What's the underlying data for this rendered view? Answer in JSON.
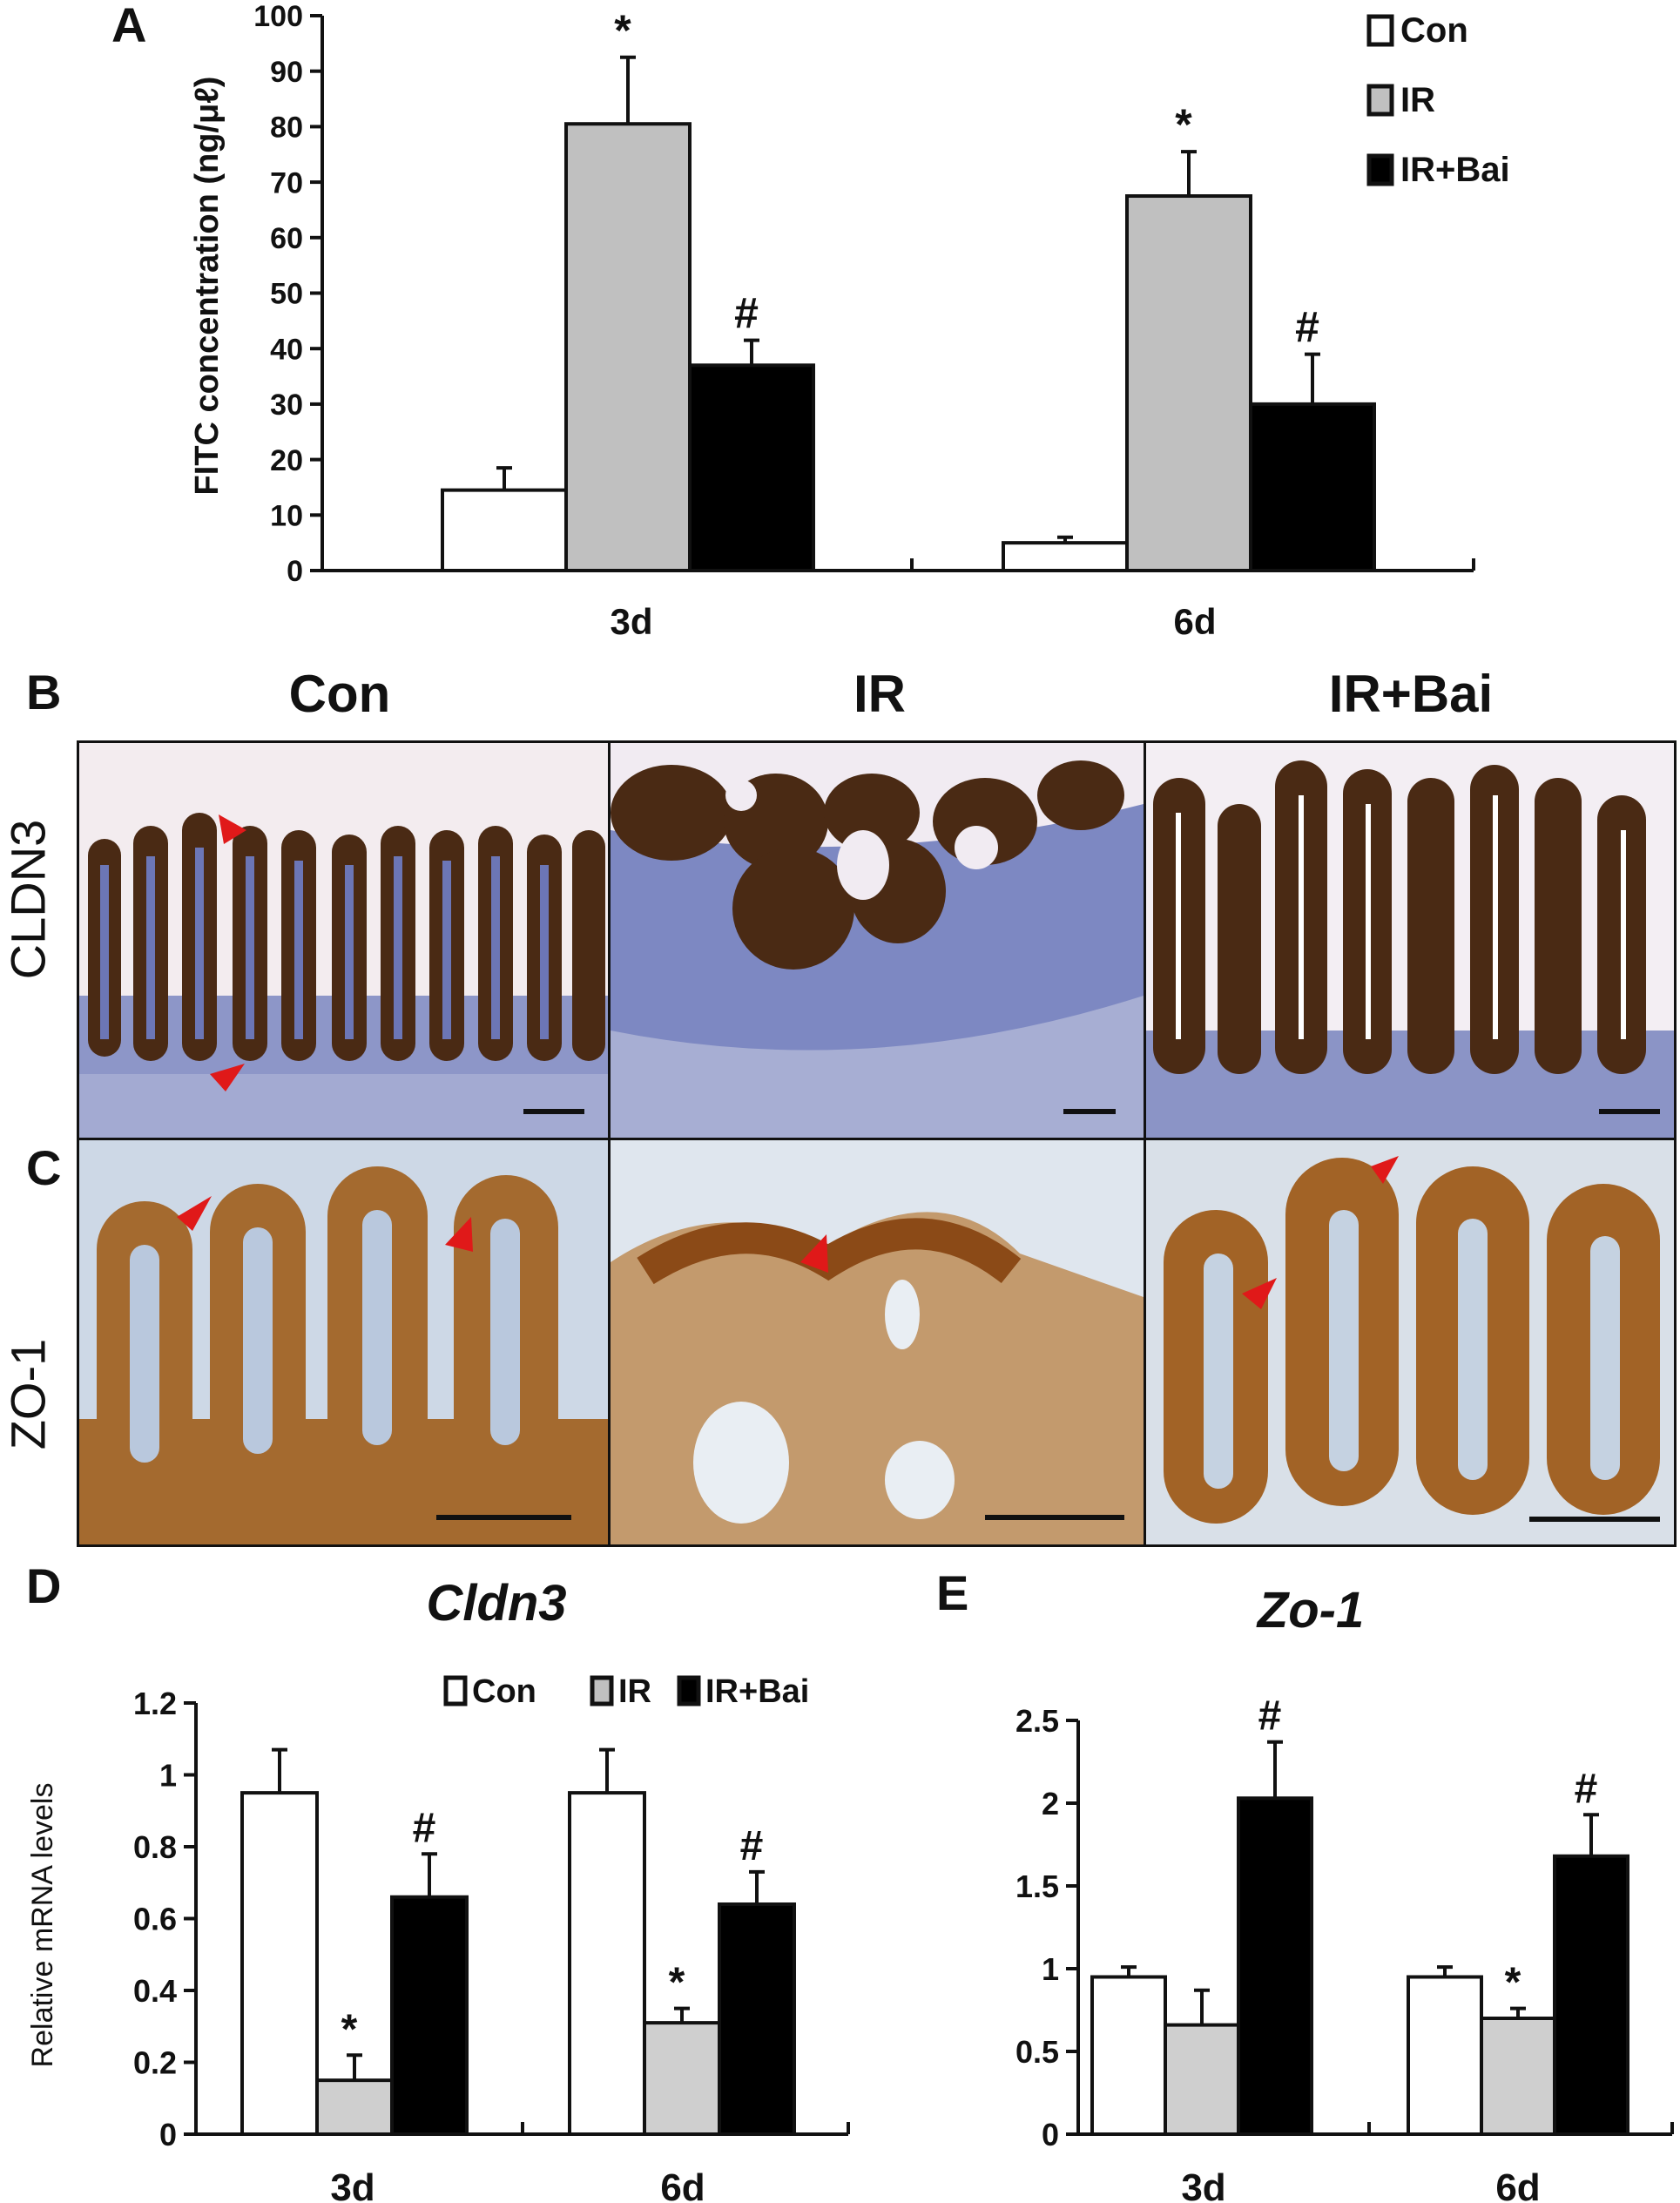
{
  "figure": {
    "panels": {
      "A": "A",
      "B": "B",
      "C": "C",
      "D": "D",
      "E": "E"
    },
    "micrograph_columns": [
      "Con",
      "IR",
      "IR+Bai"
    ],
    "micrograph_rows": [
      "CLDN3",
      "ZO-1"
    ],
    "colors": {
      "con": "#ffffff",
      "ir_a": "#c0c0c0",
      "ir_de": "#cfcfcf",
      "ir_bai": "#000000",
      "stain_blue": "#6f78b8",
      "stain_brown": "#5a3318",
      "zo1_bg": "#c9d6e6",
      "zo1_brown": "#a56a2e",
      "arrow": "#e01919"
    }
  },
  "chart_data": [
    {
      "panel": "A",
      "type": "bar",
      "title": "",
      "xlabel": "",
      "ylabel": "FITC concentration (ng/μℓ)",
      "ylim": [
        0,
        100
      ],
      "yticks": [
        0,
        10,
        20,
        30,
        40,
        50,
        60,
        70,
        80,
        90,
        100
      ],
      "categories": [
        "3d",
        "6d"
      ],
      "series": [
        {
          "name": "Con",
          "values": [
            14.5,
            5
          ],
          "errors": [
            4,
            1
          ],
          "marks": [
            "",
            ""
          ]
        },
        {
          "name": "IR",
          "values": [
            80.5,
            67.5
          ],
          "errors": [
            12,
            8
          ],
          "marks": [
            "*",
            "*"
          ]
        },
        {
          "name": "IR+Bai",
          "values": [
            37,
            30
          ],
          "errors": [
            4.5,
            9
          ],
          "marks": [
            "#",
            "#"
          ]
        }
      ],
      "legend": "top-right"
    },
    {
      "panel": "D",
      "type": "bar",
      "title": "Cldn3",
      "xlabel": "",
      "ylabel": "Relative mRNA levels",
      "ylim": [
        0,
        1.2
      ],
      "yticks": [
        "0",
        "0.2",
        "0.4",
        "0.6",
        "0.8",
        "1",
        "1.2"
      ],
      "categories": [
        "3d",
        "6d"
      ],
      "series": [
        {
          "name": "Con",
          "values": [
            0.95,
            0.95
          ],
          "errors": [
            0.12,
            0.12
          ],
          "marks": [
            "",
            ""
          ]
        },
        {
          "name": "IR",
          "values": [
            0.15,
            0.31
          ],
          "errors": [
            0.07,
            0.04
          ],
          "marks": [
            "*",
            "*"
          ]
        },
        {
          "name": "IR+Bai",
          "values": [
            0.66,
            0.64
          ],
          "errors": [
            0.12,
            0.09
          ],
          "marks": [
            "#",
            "#"
          ]
        }
      ],
      "legend": "top"
    },
    {
      "panel": "E",
      "type": "bar",
      "title": "Zo-1",
      "xlabel": "",
      "ylabel": "",
      "ylim": [
        0,
        2.5
      ],
      "yticks": [
        "0",
        "0.5",
        "1",
        "1.5",
        "2",
        "2.5"
      ],
      "categories": [
        "3d",
        "6d"
      ],
      "series": [
        {
          "name": "Con",
          "values": [
            0.95,
            0.95
          ],
          "errors": [
            0.06,
            0.06
          ],
          "marks": [
            "",
            ""
          ]
        },
        {
          "name": "IR",
          "values": [
            0.66,
            0.7
          ],
          "errors": [
            0.21,
            0.06
          ],
          "marks": [
            "",
            "*"
          ]
        },
        {
          "name": "IR+Bai",
          "values": [
            2.03,
            1.68
          ],
          "errors": [
            0.34,
            0.25
          ],
          "marks": [
            "#",
            "#"
          ]
        }
      ],
      "legend": "none"
    }
  ]
}
